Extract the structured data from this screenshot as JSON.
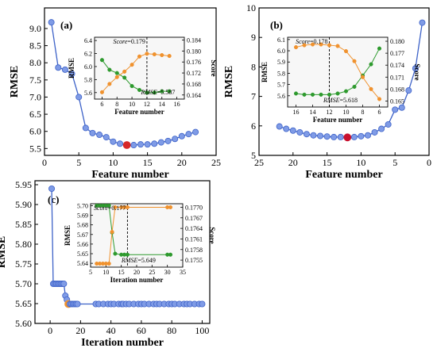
{
  "chart_data": [
    {
      "type": "line",
      "panel_label": "(a)",
      "xlabel": "Feature number",
      "ylabel": "RMSE",
      "xlim": [
        0,
        25
      ],
      "ylim": [
        5.3,
        9.6
      ],
      "xticks": [
        0,
        5,
        10,
        15,
        20,
        25
      ],
      "yticks": [
        5.5,
        6.0,
        6.5,
        7.0,
        7.5,
        8.0,
        8.5,
        9.0
      ],
      "x_reversed": false,
      "series": [
        {
          "values_x": [
            1,
            2,
            3,
            4,
            5,
            6,
            7,
            8,
            9,
            10,
            11,
            12,
            13,
            14,
            15,
            16,
            17,
            18,
            19,
            20,
            21,
            22
          ],
          "values_y": [
            9.18,
            7.86,
            7.8,
            7.68,
            7.0,
            6.1,
            5.95,
            5.9,
            5.83,
            5.7,
            5.64,
            5.6,
            5.6,
            5.62,
            5.62,
            5.64,
            5.68,
            5.72,
            5.78,
            5.86,
            5.92,
            5.98
          ],
          "highlight_x": 12
        }
      ],
      "inset": {
        "type": "line",
        "xlabel": "Feature number",
        "ylabel_left": "RMSE",
        "ylabel_right": "Score",
        "xlim": [
          5,
          17
        ],
        "ylim_left": [
          5.5,
          6.45
        ],
        "ylim_right": [
          0.1625,
          0.185
        ],
        "xticks": [
          6,
          8,
          10,
          12,
          14,
          16
        ],
        "yticks_left": [
          5.6,
          5.8,
          6.0,
          6.2,
          6.4
        ],
        "yticks_right": [
          0.164,
          0.168,
          0.172,
          0.176,
          0.18,
          0.184
        ],
        "x_reversed": false,
        "vline_x": 12,
        "series": [
          {
            "name": "RMSE",
            "axis": "left",
            "color": "#2e9a2e",
            "x": [
              6,
              7,
              8,
              9,
              10,
              11,
              12,
              13,
              14,
              15
            ],
            "y": [
              6.1,
              5.95,
              5.9,
              5.83,
              5.7,
              5.64,
              5.6,
              5.6,
              5.62,
              5.62
            ]
          },
          {
            "name": "Score",
            "axis": "right",
            "color": "#f0922e",
            "x": [
              6,
              7,
              8,
              9,
              10,
              11,
              12,
              13,
              14,
              15
            ],
            "y": [
              0.165,
              0.168,
              0.1705,
              0.1725,
              0.175,
              0.178,
              0.179,
              0.1788,
              0.1785,
              0.1782
            ]
          }
        ],
        "annotations": [
          {
            "label_prefix": "Score",
            "text": "=0.179"
          },
          {
            "label_prefix": "RMSE",
            "text": "=5.587"
          }
        ]
      }
    },
    {
      "type": "line",
      "panel_label": "(b)",
      "xlabel": "Feature number",
      "ylabel": "RMSE",
      "xlim": [
        25,
        0
      ],
      "ylim": [
        5,
        10
      ],
      "xticks": [
        25,
        20,
        15,
        10,
        5,
        0
      ],
      "yticks": [
        5,
        6,
        7,
        8,
        9,
        10
      ],
      "x_reversed": true,
      "series": [
        {
          "values_x": [
            22,
            21,
            20,
            19,
            18,
            17,
            16,
            15,
            14,
            13,
            12,
            11,
            10,
            9,
            8,
            7,
            6,
            5,
            4,
            3,
            2,
            1
          ],
          "values_y": [
            5.98,
            5.9,
            5.84,
            5.78,
            5.72,
            5.68,
            5.66,
            5.64,
            5.62,
            5.62,
            5.61,
            5.62,
            5.65,
            5.68,
            5.78,
            5.9,
            6.05,
            6.55,
            6.62,
            7.2,
            7.95,
            9.5
          ],
          "highlight_x": 12
        }
      ],
      "inset": {
        "type": "line",
        "xlabel": "Feature number",
        "ylabel_left": "RMSE",
        "ylabel_right": "Score",
        "xlim": [
          17,
          5
        ],
        "ylim_left": [
          5.5,
          6.12
        ],
        "ylim_right": [
          0.1635,
          0.181
        ],
        "xticks": [
          16,
          14,
          12,
          10,
          8,
          6
        ],
        "yticks_left": [
          5.6,
          5.7,
          5.8,
          5.9,
          6.0,
          6.1
        ],
        "yticks_right": [
          0.165,
          0.168,
          0.171,
          0.174,
          0.177,
          0.18
        ],
        "x_reversed": true,
        "vline_x": 12,
        "series": [
          {
            "name": "RMSE",
            "axis": "left",
            "color": "#2e9a2e",
            "x": [
              16,
              15,
              14,
              13,
              12,
              11,
              10,
              9,
              8,
              7,
              6
            ],
            "y": [
              5.62,
              5.61,
              5.61,
              5.61,
              5.61,
              5.62,
              5.64,
              5.68,
              5.78,
              5.88,
              6.02
            ]
          },
          {
            "name": "Score",
            "axis": "right",
            "color": "#f0922e",
            "x": [
              16,
              15,
              14,
              13,
              12,
              11,
              10,
              9,
              8,
              7,
              6
            ],
            "y": [
              0.1785,
              0.179,
              0.1792,
              0.1792,
              0.179,
              0.1788,
              0.1775,
              0.175,
              0.171,
              0.168,
              0.1655
            ]
          }
        ],
        "annotations": [
          {
            "label_prefix": "Score",
            "text": "=0.178"
          },
          {
            "label_prefix": "RMSE",
            "text": "=5.618"
          }
        ]
      }
    },
    {
      "type": "line",
      "panel_label": "(c)",
      "xlabel": "Iteration number",
      "ylabel": "RMSE",
      "xlim": [
        -10,
        105
      ],
      "ylim": [
        5.6,
        5.96
      ],
      "xticks": [
        0,
        20,
        40,
        60,
        80,
        100
      ],
      "yticks": [
        5.6,
        5.65,
        5.7,
        5.75,
        5.8,
        5.85,
        5.9,
        5.95
      ],
      "x_reversed": false,
      "series": [
        {
          "values_x": [
            1,
            2,
            3,
            4,
            5,
            6,
            7,
            8,
            9,
            10,
            11,
            12,
            13,
            14,
            15,
            16,
            17,
            18,
            30,
            32,
            35,
            38,
            40,
            42,
            45,
            47,
            48,
            50,
            52,
            55,
            58,
            60,
            62,
            65,
            68,
            70,
            72,
            75,
            78,
            80,
            82,
            85,
            88,
            90,
            92,
            95,
            98,
            100
          ],
          "values_y": [
            5.94,
            5.7,
            5.7,
            5.7,
            5.7,
            5.7,
            5.7,
            5.7,
            5.7,
            5.67,
            5.66,
            5.649,
            5.649,
            5.649,
            5.649,
            5.649,
            5.649,
            5.649,
            5.649,
            5.649,
            5.649,
            5.649,
            5.649,
            5.649,
            5.649,
            5.649,
            5.649,
            5.649,
            5.649,
            5.649,
            5.649,
            5.649,
            5.649,
            5.649,
            5.649,
            5.649,
            5.649,
            5.649,
            5.649,
            5.649,
            5.649,
            5.649,
            5.649,
            5.649,
            5.649,
            5.649,
            5.649,
            5.649
          ],
          "highlight_x": 12
        }
      ],
      "inset": {
        "type": "line",
        "xlabel": "Iteration number",
        "ylabel_left": "RMSE",
        "ylabel_right": "Score",
        "xlim": [
          5,
          35
        ],
        "ylim_left": [
          5.636,
          5.702
        ],
        "ylim_right": [
          0.1753,
          0.1771
        ],
        "xticks": [
          5,
          10,
          15,
          20,
          25,
          30,
          35
        ],
        "yticks_left": [
          5.64,
          5.65,
          5.66,
          5.67,
          5.68,
          5.69,
          5.7
        ],
        "yticks_right": [
          0.1755,
          0.1758,
          0.1761,
          0.1764,
          0.1767,
          0.177
        ],
        "x_reversed": false,
        "vline_x": 17,
        "series": [
          {
            "name": "RMSE",
            "axis": "left",
            "color": "#2e9a2e",
            "x": [
              7,
              8,
              9,
              10,
              11,
              12,
              13,
              15,
              16,
              17,
              30,
              31
            ],
            "y": [
              5.7,
              5.7,
              5.7,
              5.7,
              5.7,
              5.672,
              5.65,
              5.649,
              5.649,
              5.649,
              5.649,
              5.649
            ]
          },
          {
            "name": "Score",
            "axis": "right",
            "color": "#f0922e",
            "x": [
              7,
              8,
              9,
              10,
              11,
              12,
              13,
              15,
              16,
              17,
              30,
              31
            ],
            "y": [
              0.1754,
              0.1754,
              0.1754,
              0.1754,
              0.1754,
              0.1763,
              0.177,
              0.177,
              0.177,
              0.177,
              0.177,
              0.177
            ]
          }
        ],
        "annotations": [
          {
            "label_prefix": "Score",
            "text": "=0.177"
          },
          {
            "label_prefix": "RMSE",
            "text": "=5.649"
          }
        ]
      }
    }
  ],
  "colors": {
    "main_line": "#3d62c8",
    "main_marker": "#7f9be6",
    "highlight_a": "#d62728",
    "highlight_b": "#c8102e",
    "highlight_c": "#f0922e",
    "inset_bg": "#f7f7f7"
  }
}
